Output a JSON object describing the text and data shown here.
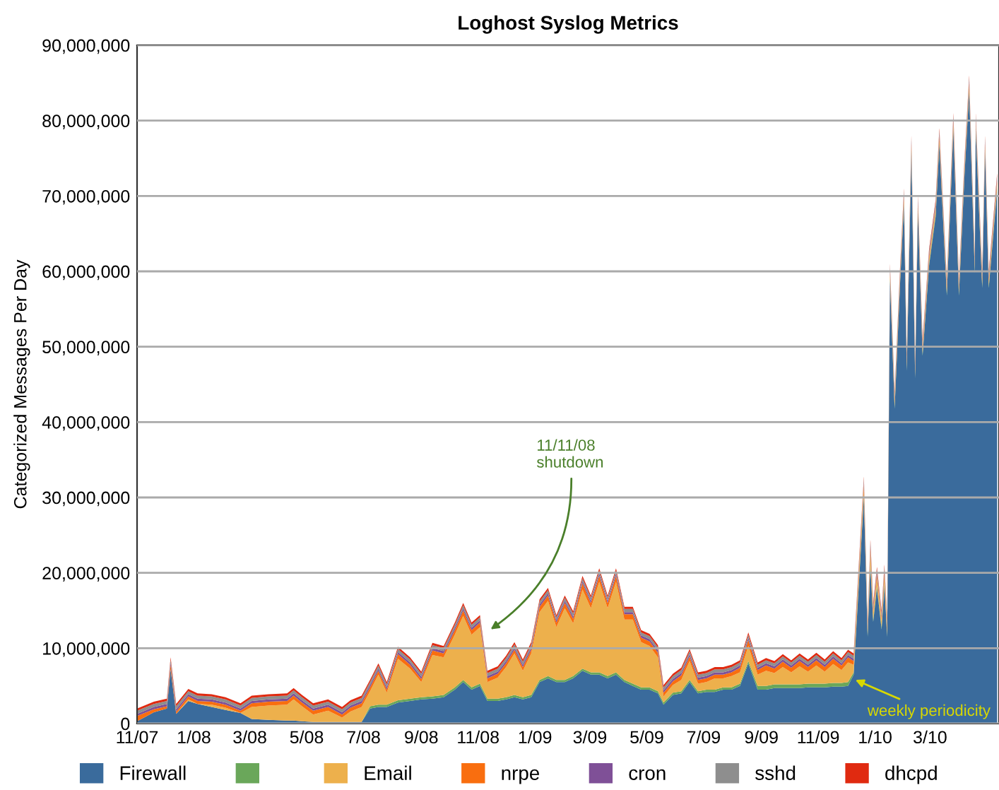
{
  "chart_data": {
    "type": "area",
    "stacked": true,
    "title": "Loghost Syslog Metrics",
    "ylabel": "Categorized Messages Per Day",
    "x": [
      "2007-11-01",
      "2007-11-19",
      "2007-12-03",
      "2007-12-07",
      "2007-12-13",
      "2007-12-26",
      "2008-01-05",
      "2008-01-20",
      "2008-02-04",
      "2008-02-20",
      "2008-03-03",
      "2008-03-21",
      "2008-04-10",
      "2008-04-17",
      "2008-04-26",
      "2008-05-08",
      "2008-05-24",
      "2008-06-08",
      "2008-06-17",
      "2008-06-29",
      "2008-07-08",
      "2008-07-17",
      "2008-07-26",
      "2008-08-07",
      "2008-08-20",
      "2008-09-01",
      "2008-09-13",
      "2008-09-25",
      "2008-10-07",
      "2008-10-16",
      "2008-10-25",
      "2008-11-03",
      "2008-11-11",
      "2008-11-22",
      "2008-12-01",
      "2008-12-10",
      "2008-12-19",
      "2008-12-28",
      "2009-01-06",
      "2009-01-15",
      "2009-01-24",
      "2009-02-02",
      "2009-02-11",
      "2009-02-21",
      "2009-03-02",
      "2009-03-11",
      "2009-03-20",
      "2009-03-29",
      "2009-04-07",
      "2009-04-16",
      "2009-04-25",
      "2009-05-04",
      "2009-05-13",
      "2009-05-19",
      "2009-05-29",
      "2009-06-07",
      "2009-06-16",
      "2009-06-25",
      "2009-07-04",
      "2009-07-13",
      "2009-07-22",
      "2009-07-31",
      "2009-08-09",
      "2009-08-18",
      "2009-08-28",
      "2009-09-06",
      "2009-09-15",
      "2009-09-24",
      "2009-10-03",
      "2009-10-12",
      "2009-10-21",
      "2009-10-30",
      "2009-11-08",
      "2009-11-17",
      "2009-11-26",
      "2009-12-03",
      "2009-12-09",
      "2009-12-20",
      "2009-12-24",
      "2009-12-27",
      "2009-12-30",
      "2010-01-03",
      "2010-01-08",
      "2010-01-11",
      "2010-01-14",
      "2010-01-17",
      "2010-01-22",
      "2010-01-28",
      "2010-02-01",
      "2010-02-04",
      "2010-02-09",
      "2010-02-13",
      "2010-02-16",
      "2010-02-21",
      "2010-02-28",
      "2010-03-07",
      "2010-03-11",
      "2010-03-19",
      "2010-03-26",
      "2010-04-01",
      "2010-04-07",
      "2010-04-12",
      "2010-04-18",
      "2010-04-19",
      "2010-04-26",
      "2010-04-29",
      "2010-05-03",
      "2010-05-12"
    ],
    "series": [
      {
        "name": "Firewall",
        "color": "#3a6b9c",
        "values": [
          300000,
          1500000,
          2000000,
          7200000,
          1300000,
          3000000,
          2600000,
          2200000,
          1800000,
          1400000,
          600000,
          500000,
          400000,
          400000,
          300000,
          200000,
          200000,
          200000,
          200000,
          200000,
          2000000,
          2200000,
          2200000,
          2800000,
          3000000,
          3200000,
          3300000,
          3500000,
          4500000,
          5500000,
          4500000,
          5000000,
          3000000,
          3000000,
          3200000,
          3500000,
          3200000,
          3500000,
          5500000,
          6000000,
          5500000,
          5500000,
          6000000,
          7000000,
          6500000,
          6500000,
          6000000,
          6500000,
          5500000,
          5000000,
          4500000,
          4500000,
          4000000,
          2500000,
          3800000,
          4000000,
          5500000,
          4000000,
          4200000,
          4200000,
          4500000,
          4500000,
          5000000,
          8000000,
          4500000,
          4500000,
          4700000,
          4700000,
          4700000,
          4700000,
          4800000,
          4800000,
          4800000,
          4900000,
          4900000,
          5000000,
          6500000,
          30000000,
          11500000,
          21000000,
          13500000,
          18000000,
          12500000,
          18300000,
          11500000,
          58800000,
          41800000,
          58800000,
          68800000,
          46800000,
          75800000,
          45800000,
          67800000,
          48800000,
          60800000,
          67300000,
          76800000,
          56800000,
          78800000,
          56800000,
          72800000,
          83800000,
          59800000,
          78800000,
          57800000,
          75800000,
          57800000,
          70800000
        ]
      },
      {
        "color": "#6aa75a",
        "values": [
          0,
          0,
          0,
          0,
          0,
          0,
          0,
          0,
          0,
          0,
          0,
          0,
          0,
          0,
          0,
          0,
          0,
          0,
          0,
          0,
          300000,
          300000,
          300000,
          300000,
          300000,
          300000,
          300000,
          300000,
          300000,
          300000,
          300000,
          300000,
          300000,
          300000,
          300000,
          300000,
          300000,
          300000,
          300000,
          300000,
          300000,
          300000,
          300000,
          300000,
          300000,
          300000,
          300000,
          300000,
          300000,
          300000,
          300000,
          300000,
          300000,
          300000,
          300000,
          300000,
          300000,
          300000,
          300000,
          300000,
          300000,
          300000,
          300000,
          300000,
          500000,
          500000,
          500000,
          500000,
          500000,
          500000,
          500000,
          500000,
          500000,
          500000,
          500000,
          500000,
          300000,
          300000,
          300000,
          300000,
          300000,
          300000,
          300000,
          300000,
          300000,
          300000,
          300000,
          300000,
          300000,
          300000,
          300000,
          300000,
          300000,
          300000,
          300000,
          300000,
          300000,
          300000,
          300000,
          300000,
          300000,
          300000,
          300000,
          300000,
          300000,
          300000,
          300000,
          300000
        ]
      },
      {
        "name": "Email",
        "color": "#edb04c",
        "values": [
          0,
          0,
          0,
          0,
          0,
          200000,
          0,
          300000,
          300000,
          0,
          1600000,
          1900000,
          2100000,
          2800000,
          2000000,
          1000000,
          1500000,
          600000,
          1400000,
          2000000,
          2000000,
          4000000,
          1600000,
          5500000,
          4000000,
          2000000,
          5500000,
          5000000,
          7000000,
          8500000,
          7000000,
          7500000,
          2200000,
          2800000,
          4000000,
          5500000,
          3500000,
          5500000,
          9000000,
          10000000,
          7000000,
          9500000,
          7000000,
          10500000,
          8500000,
          12000000,
          9000000,
          12000000,
          8000000,
          8500000,
          6000000,
          5500000,
          4500000,
          800000,
          1000000,
          1500000,
          2500000,
          1000000,
          1000000,
          1500000,
          1200000,
          1500000,
          1500000,
          2000000,
          1500000,
          2000000,
          1500000,
          2300000,
          1600000,
          2400000,
          1600000,
          2400000,
          1600000,
          2500000,
          1700000,
          2600000,
          1000000,
          1000000,
          500000,
          1500000,
          800000,
          1000000,
          800000,
          1000000,
          800000,
          500000,
          500000,
          500000,
          500000,
          500000,
          500000,
          500000,
          500000,
          500000,
          500000,
          500000,
          500000,
          500000,
          500000,
          500000,
          500000,
          500000,
          500000,
          500000,
          500000,
          500000,
          500000,
          500000
        ]
      },
      {
        "name": "nrpe",
        "color": "#f96e0f",
        "values": [
          700000,
          400000,
          300000,
          600000,
          300000,
          400000,
          400000,
          400000,
          400000,
          300000,
          500000,
          500000,
          500000,
          500000,
          500000,
          500000,
          500000,
          400000,
          500000,
          500000,
          500000,
          500000,
          400000,
          600000,
          500000,
          400000,
          600000,
          500000,
          600000,
          700000,
          600000,
          600000,
          500000,
          500000,
          500000,
          500000,
          500000,
          500000,
          700000,
          700000,
          600000,
          700000,
          600000,
          800000,
          700000,
          800000,
          700000,
          800000,
          700000,
          700000,
          600000,
          600000,
          600000,
          500000,
          500000,
          600000,
          600000,
          500000,
          500000,
          500000,
          500000,
          500000,
          600000,
          800000,
          600000,
          700000,
          600000,
          700000,
          600000,
          700000,
          600000,
          700000,
          600000,
          700000,
          600000,
          700000,
          500000,
          500000,
          300000,
          600000,
          400000,
          500000,
          400000,
          500000,
          400000,
          400000,
          400000,
          400000,
          400000,
          400000,
          400000,
          400000,
          400000,
          400000,
          400000,
          400000,
          400000,
          400000,
          400000,
          400000,
          400000,
          400000,
          400000,
          400000,
          400000,
          400000,
          400000,
          400000
        ]
      },
      {
        "name": "cron",
        "color": "#7f5097",
        "values": [
          300000,
          300000,
          300000,
          300000,
          300000,
          300000,
          300000,
          300000,
          300000,
          300000,
          300000,
          300000,
          300000,
          300000,
          300000,
          300000,
          300000,
          300000,
          300000,
          300000,
          300000,
          300000,
          300000,
          300000,
          300000,
          300000,
          300000,
          300000,
          300000,
          300000,
          300000,
          300000,
          300000,
          300000,
          300000,
          300000,
          300000,
          300000,
          300000,
          300000,
          300000,
          300000,
          300000,
          300000,
          300000,
          300000,
          300000,
          300000,
          300000,
          300000,
          300000,
          300000,
          300000,
          300000,
          300000,
          300000,
          300000,
          300000,
          300000,
          300000,
          300000,
          300000,
          300000,
          300000,
          300000,
          300000,
          300000,
          300000,
          300000,
          300000,
          300000,
          300000,
          300000,
          300000,
          300000,
          300000,
          300000,
          300000,
          300000,
          300000,
          300000,
          300000,
          300000,
          300000,
          300000,
          300000,
          300000,
          300000,
          300000,
          300000,
          300000,
          300000,
          300000,
          300000,
          300000,
          300000,
          300000,
          300000,
          300000,
          300000,
          300000,
          300000,
          300000,
          300000,
          300000,
          300000,
          300000,
          300000
        ]
      },
      {
        "name": "sshd",
        "color": "#8e8e8e",
        "values": [
          400000,
          400000,
          400000,
          400000,
          400000,
          400000,
          400000,
          400000,
          400000,
          400000,
          400000,
          400000,
          400000,
          400000,
          400000,
          400000,
          400000,
          400000,
          400000,
          400000,
          400000,
          400000,
          400000,
          400000,
          400000,
          400000,
          400000,
          400000,
          400000,
          400000,
          400000,
          400000,
          400000,
          400000,
          400000,
          400000,
          400000,
          400000,
          400000,
          400000,
          400000,
          400000,
          400000,
          400000,
          400000,
          400000,
          400000,
          400000,
          400000,
          400000,
          400000,
          400000,
          400000,
          400000,
          400000,
          400000,
          400000,
          400000,
          400000,
          400000,
          400000,
          400000,
          400000,
          400000,
          400000,
          400000,
          400000,
          400000,
          400000,
          400000,
          400000,
          400000,
          400000,
          400000,
          400000,
          400000,
          400000,
          400000,
          400000,
          400000,
          400000,
          400000,
          400000,
          400000,
          400000,
          400000,
          400000,
          400000,
          400000,
          400000,
          400000,
          400000,
          400000,
          400000,
          400000,
          400000,
          400000,
          400000,
          400000,
          400000,
          400000,
          400000,
          400000,
          400000,
          400000,
          400000,
          400000,
          400000
        ]
      },
      {
        "name": "dhcpd",
        "color": "#e02a10",
        "values": [
          300000,
          300000,
          300000,
          300000,
          300000,
          300000,
          300000,
          300000,
          300000,
          300000,
          300000,
          300000,
          300000,
          300000,
          300000,
          300000,
          300000,
          300000,
          300000,
          300000,
          300000,
          300000,
          300000,
          300000,
          300000,
          300000,
          300000,
          300000,
          300000,
          300000,
          300000,
          300000,
          300000,
          300000,
          300000,
          300000,
          300000,
          300000,
          300000,
          300000,
          300000,
          300000,
          300000,
          300000,
          300000,
          300000,
          300000,
          300000,
          300000,
          300000,
          300000,
          300000,
          300000,
          300000,
          300000,
          300000,
          300000,
          300000,
          300000,
          300000,
          300000,
          300000,
          300000,
          300000,
          300000,
          300000,
          300000,
          300000,
          300000,
          300000,
          300000,
          300000,
          300000,
          300000,
          300000,
          300000,
          300000,
          300000,
          300000,
          300000,
          300000,
          300000,
          300000,
          300000,
          300000,
          300000,
          300000,
          300000,
          300000,
          300000,
          300000,
          300000,
          300000,
          300000,
          300000,
          300000,
          300000,
          300000,
          300000,
          300000,
          300000,
          300000,
          300000,
          300000,
          300000,
          300000,
          300000,
          300000
        ]
      }
    ],
    "xlim": [
      "2007-11-01",
      "2010-05-14"
    ],
    "xticks": [
      {
        "value": "2007-11-01",
        "label": "11/07"
      },
      {
        "value": "2008-01-01",
        "label": "1/08"
      },
      {
        "value": "2008-03-01",
        "label": "3/08"
      },
      {
        "value": "2008-05-01",
        "label": "5/08"
      },
      {
        "value": "2008-07-01",
        "label": "7/08"
      },
      {
        "value": "2008-09-01",
        "label": "9/08"
      },
      {
        "value": "2008-11-01",
        "label": "11/08"
      },
      {
        "value": "2009-01-01",
        "label": "1/09"
      },
      {
        "value": "2009-03-01",
        "label": "3/09"
      },
      {
        "value": "2009-05-01",
        "label": "5/09"
      },
      {
        "value": "2009-07-01",
        "label": "7/09"
      },
      {
        "value": "2009-09-01",
        "label": "9/09"
      },
      {
        "value": "2009-11-01",
        "label": "11/09"
      },
      {
        "value": "2010-01-01",
        "label": "1/10"
      },
      {
        "value": "2010-03-01",
        "label": "3/10"
      }
    ],
    "ylim": [
      0,
      90000000
    ],
    "yticks": [
      0,
      {
        "value": 10000000,
        "label": "10,000,000"
      },
      {
        "value": 20000000,
        "label": "20,000,000"
      },
      {
        "value": 30000000,
        "label": "30,000,000"
      },
      {
        "value": 40000000,
        "label": "40,000,000"
      },
      {
        "value": 50000000,
        "label": "50,000,000"
      },
      {
        "value": 60000000,
        "label": "60,000,000"
      },
      {
        "value": 70000000,
        "label": "70,000,000"
      },
      {
        "value": 80000000,
        "label": "80,000,000"
      },
      {
        "value": 90000000,
        "label": "90,000,000"
      }
    ],
    "grid": "y",
    "legend": "bottom",
    "annotations": [
      {
        "text": "11/11/08\nshutdown",
        "x": "2008-11-11",
        "y": 12200000
      },
      {
        "text": "weekly periodicity",
        "x": "2009-12-07",
        "y": 6000000
      }
    ]
  }
}
